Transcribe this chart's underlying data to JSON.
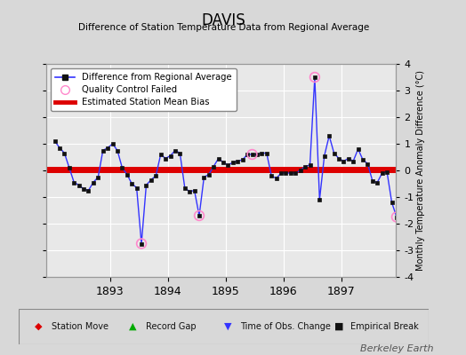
{
  "title": "DAVIS",
  "subtitle": "Difference of Station Temperature Data from Regional Average",
  "ylabel_right": "Monthly Temperature Anomaly Difference (°C)",
  "ylim": [
    -4,
    4
  ],
  "bias": 0.05,
  "background_color": "#d8d8d8",
  "plot_bg_color": "#e8e8e8",
  "grid_color": "#ffffff",
  "watermark": "Berkeley Earth",
  "years": [
    1892,
    1892,
    1892,
    1892,
    1892,
    1892,
    1892,
    1892,
    1892,
    1892,
    1892,
    1892,
    1893,
    1893,
    1893,
    1893,
    1893,
    1893,
    1893,
    1893,
    1893,
    1893,
    1893,
    1893,
    1894,
    1894,
    1894,
    1894,
    1894,
    1894,
    1894,
    1894,
    1894,
    1894,
    1894,
    1894,
    1895,
    1895,
    1895,
    1895,
    1895,
    1895,
    1895,
    1895,
    1895,
    1895,
    1895,
    1895,
    1896,
    1896,
    1896,
    1896,
    1896,
    1896,
    1896,
    1896,
    1896,
    1896,
    1896,
    1896,
    1897,
    1897,
    1897,
    1897,
    1897,
    1897,
    1897,
    1897,
    1897,
    1897,
    1897,
    1897
  ],
  "months": [
    1,
    2,
    3,
    4,
    5,
    6,
    7,
    8,
    9,
    10,
    11,
    12,
    1,
    2,
    3,
    4,
    5,
    6,
    7,
    8,
    9,
    10,
    11,
    12,
    1,
    2,
    3,
    4,
    5,
    6,
    7,
    8,
    9,
    10,
    11,
    12,
    1,
    2,
    3,
    4,
    5,
    6,
    7,
    8,
    9,
    10,
    11,
    12,
    1,
    2,
    3,
    4,
    5,
    6,
    7,
    8,
    9,
    10,
    11,
    12,
    1,
    2,
    3,
    4,
    5,
    6,
    7,
    8,
    9,
    10,
    11,
    12
  ],
  "values": [
    1.1,
    0.85,
    0.65,
    0.1,
    -0.45,
    -0.55,
    -0.7,
    -0.75,
    -0.45,
    -0.25,
    0.75,
    0.85,
    1.0,
    0.75,
    0.1,
    -0.15,
    -0.5,
    -0.65,
    -2.75,
    -0.55,
    -0.35,
    -0.2,
    0.6,
    0.45,
    0.55,
    0.75,
    0.65,
    -0.65,
    -0.8,
    -0.75,
    -1.7,
    -0.25,
    -0.15,
    0.15,
    0.45,
    0.3,
    0.2,
    0.3,
    0.35,
    0.4,
    0.6,
    0.6,
    0.6,
    0.65,
    0.65,
    -0.2,
    -0.3,
    -0.1,
    -0.1,
    -0.1,
    -0.1,
    0.0,
    0.15,
    0.2,
    3.5,
    -1.1,
    0.55,
    1.3,
    0.65,
    0.45,
    0.35,
    0.45,
    0.35,
    0.8,
    0.4,
    0.25,
    -0.4,
    -0.45,
    -0.1,
    -0.05,
    -1.2,
    -1.75
  ],
  "qc_failed_indices": [
    18,
    30,
    41,
    54,
    71
  ],
  "line_color": "#3333ff",
  "marker_color": "#111111",
  "qc_color": "#ff88cc",
  "bias_color": "#dd0000",
  "bias_linewidth": 5,
  "line_linewidth": 1.0,
  "marker_size": 3.5,
  "xlim_left": 1891.9,
  "xlim_right": 1897.95,
  "xtick_positions": [
    1893,
    1894,
    1895,
    1896,
    1897
  ]
}
